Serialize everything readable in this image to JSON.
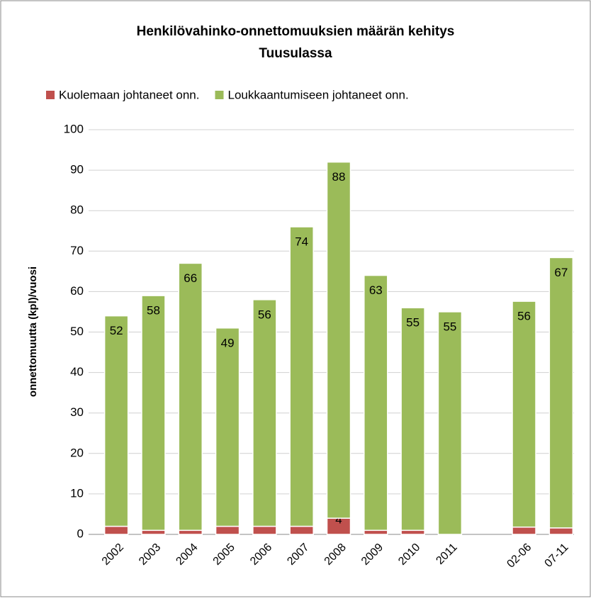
{
  "chart_data": {
    "type": "stacked_bar",
    "title": [
      "Henkilövahinko-onnettomuuksien määrän kehitys",
      "Tuusulassa"
    ],
    "y_label": "onnettomuutta (kpl)/vuosi",
    "categories": [
      "2002",
      "2003",
      "2004",
      "2005",
      "2006",
      "2007",
      "2008",
      "2009",
      "2010",
      "2011",
      null,
      "02-06",
      "07-11"
    ],
    "series": [
      {
        "name": "Kuolemaan johtaneet onn.",
        "color": "#c0504d",
        "values": [
          2,
          1,
          1,
          2,
          2,
          2,
          4,
          1,
          1,
          0,
          null,
          1.8,
          1.6
        ],
        "value_labels": [
          "2",
          "1",
          "1",
          "2",
          "2",
          "2",
          "4",
          "1",
          "1",
          "0",
          null,
          "2",
          "2"
        ]
      },
      {
        "name": "Loukkaantumiseen johtaneet onn.",
        "color": "#9bbb59",
        "values": [
          52,
          58,
          66,
          49,
          56,
          74,
          88,
          63,
          55,
          55,
          null,
          55.8,
          66.8
        ],
        "value_labels": [
          "52",
          "58",
          "66",
          "49",
          "56",
          "74",
          "88",
          "63",
          "55",
          "55",
          null,
          "56",
          "67"
        ]
      }
    ],
    "ylim": [
      0,
      100
    ],
    "yticks": [
      0,
      10,
      20,
      30,
      40,
      50,
      60,
      70,
      80,
      90,
      100
    ],
    "grid": true,
    "legend": "top"
  }
}
